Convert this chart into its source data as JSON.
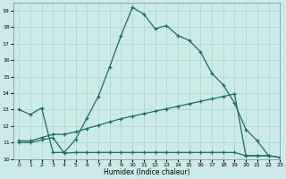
{
  "xlabel": "Humidex (Indice chaleur)",
  "background_color": "#cceae8",
  "grid_color": "#aad4d2",
  "line_color": "#1a6e68",
  "xlim": [
    -0.5,
    23
  ],
  "ylim": [
    10,
    19.5
  ],
  "yticks": [
    10,
    11,
    12,
    13,
    14,
    15,
    16,
    17,
    18,
    19
  ],
  "xticks": [
    0,
    1,
    2,
    3,
    4,
    5,
    6,
    7,
    8,
    9,
    10,
    11,
    12,
    13,
    14,
    15,
    16,
    17,
    18,
    19,
    20,
    21,
    22,
    23
  ],
  "line1_x": [
    0,
    1,
    2,
    3,
    4,
    5,
    6,
    7,
    8,
    9,
    10,
    11,
    12,
    13,
    14,
    15,
    16,
    17,
    18,
    19,
    20,
    21,
    22
  ],
  "line1_y": [
    13.0,
    12.7,
    13.1,
    10.4,
    10.4,
    11.2,
    12.5,
    13.8,
    15.6,
    17.5,
    19.2,
    18.8,
    17.9,
    18.1,
    17.5,
    17.2,
    16.5,
    15.2,
    14.5,
    13.4,
    11.8,
    11.1,
    10.2
  ],
  "line2_x": [
    0,
    1,
    2,
    3,
    4,
    5,
    6,
    7,
    8,
    9,
    10,
    11,
    12,
    13,
    14,
    15,
    16,
    17,
    18,
    19,
    20,
    21,
    22,
    23
  ],
  "line2_y": [
    11.0,
    11.0,
    11.15,
    11.3,
    10.35,
    10.4,
    10.4,
    10.4,
    10.4,
    10.4,
    10.4,
    10.4,
    10.4,
    10.4,
    10.4,
    10.4,
    10.4,
    10.4,
    10.4,
    10.4,
    10.2,
    10.2,
    10.2,
    10.1
  ],
  "line3_x": [
    0,
    1,
    2,
    3,
    4,
    5,
    6,
    7,
    8,
    9,
    10,
    11,
    12,
    13,
    14,
    15,
    16,
    17,
    18,
    19,
    20,
    21,
    22,
    23
  ],
  "line3_y": [
    11.1,
    11.1,
    11.3,
    11.5,
    11.5,
    11.65,
    11.85,
    12.05,
    12.25,
    12.45,
    12.6,
    12.75,
    12.9,
    13.05,
    13.2,
    13.35,
    13.5,
    13.65,
    13.8,
    13.95,
    10.2,
    10.2,
    10.2,
    10.1
  ]
}
